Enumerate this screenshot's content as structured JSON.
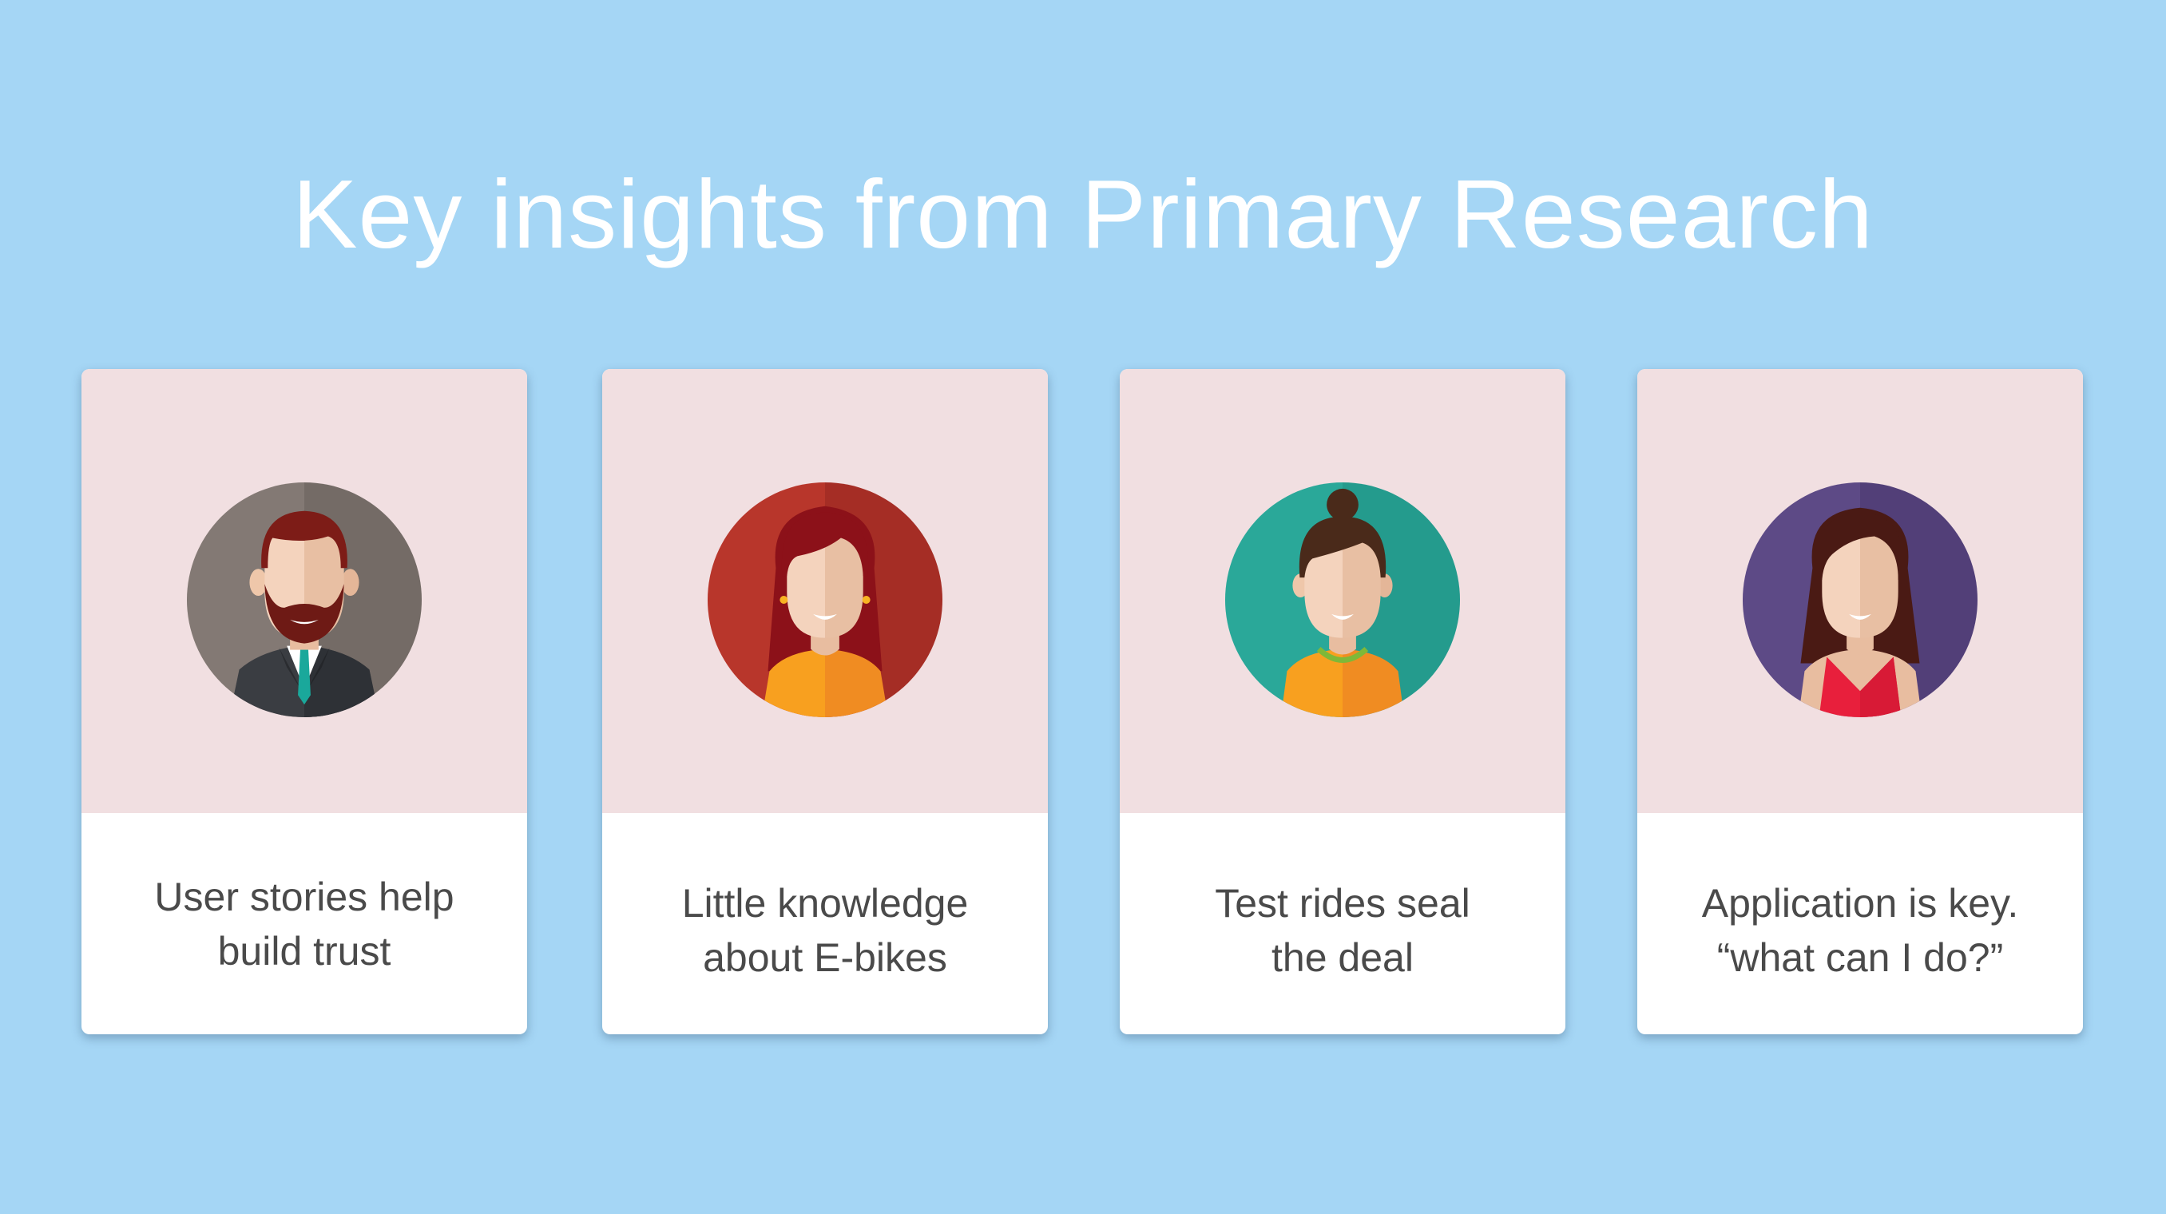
{
  "slide": {
    "title": "Key insights from Primary Research",
    "colors": {
      "background": "#a5d6f5",
      "card_top": "#f1dfe1",
      "card_bottom": "#ffffff",
      "text": "#4a4a4a"
    }
  },
  "cards": [
    {
      "avatar_icon": "businessman-avatar-icon",
      "line1": "User stories help",
      "line2": "build trust"
    },
    {
      "avatar_icon": "woman-red-hair-avatar-icon",
      "line1": "Little knowledge",
      "line2": "about E-bikes"
    },
    {
      "avatar_icon": "woman-bun-avatar-icon",
      "line1": "Test rides seal",
      "line2": "the deal"
    },
    {
      "avatar_icon": "woman-red-dress-avatar-icon",
      "line1": "Application is key.",
      "line2": "“what can I do?”"
    }
  ]
}
